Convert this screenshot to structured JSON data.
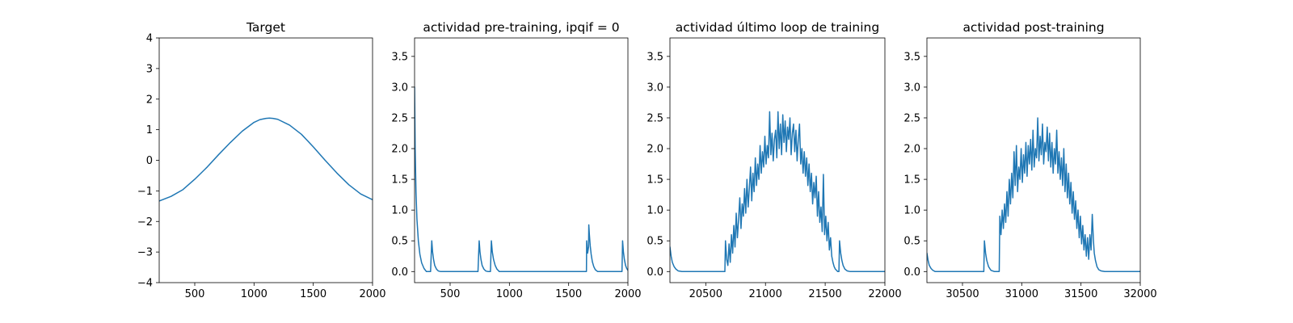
{
  "chart_data": [
    {
      "type": "line",
      "title": "Target",
      "xlim": [
        200,
        2000
      ],
      "ylim": [
        -4,
        4
      ],
      "xticks": [
        500,
        1000,
        1500,
        2000
      ],
      "yticks": [
        -4,
        -3,
        -2,
        -1,
        0,
        1,
        2,
        3,
        4
      ],
      "xtick_labels": [
        "500",
        "1000",
        "1500",
        "2000"
      ],
      "ytick_labels": [
        "−4",
        "−3",
        "−2",
        "−1",
        "0",
        "1",
        "2",
        "3",
        "4"
      ],
      "grid": false,
      "color": "#1f77b4",
      "x": [
        200,
        300,
        400,
        500,
        600,
        700,
        800,
        900,
        1000,
        1050,
        1100,
        1130,
        1160,
        1200,
        1300,
        1400,
        1500,
        1600,
        1700,
        1800,
        1900,
        2000
      ],
      "y": [
        -1.33,
        -1.18,
        -0.96,
        -0.62,
        -0.24,
        0.18,
        0.58,
        0.95,
        1.24,
        1.33,
        1.37,
        1.38,
        1.37,
        1.34,
        1.15,
        0.85,
        0.44,
        0.0,
        -0.42,
        -0.8,
        -1.1,
        -1.29
      ]
    },
    {
      "type": "line",
      "title": "actividad pre-training, ipqif = 0",
      "xlim": [
        200,
        2000
      ],
      "ylim": [
        -0.18,
        3.8
      ],
      "xticks": [
        500,
        1000,
        1500,
        2000
      ],
      "yticks": [
        0.0,
        0.5,
        1.0,
        1.5,
        2.0,
        2.5,
        3.0,
        3.5
      ],
      "xtick_labels": [
        "500",
        "1000",
        "1500",
        "2000"
      ],
      "ytick_labels": [
        "0.0",
        "0.5",
        "1.0",
        "1.5",
        "2.0",
        "2.5",
        "3.0",
        "3.5"
      ],
      "grid": false,
      "color": "#1f77b4",
      "x": [
        200,
        205,
        212,
        220,
        232,
        245,
        260,
        280,
        300,
        335,
        345,
        352,
        360,
        370,
        385,
        400,
        420,
        735,
        745,
        752,
        760,
        770,
        785,
        800,
        820,
        840,
        848,
        856,
        866,
        880,
        895,
        915,
        1650,
        1652,
        1660,
        1668,
        1670,
        1675,
        1682,
        1690,
        1700,
        1712,
        1725,
        1745,
        1770,
        1950,
        1955,
        1962,
        1970,
        1980,
        1990,
        2000
      ],
      "y": [
        3.0,
        2.0,
        1.3,
        0.85,
        0.5,
        0.28,
        0.14,
        0.05,
        0.0,
        0.0,
        0.5,
        0.32,
        0.2,
        0.1,
        0.04,
        0.01,
        0.0,
        0.0,
        0.5,
        0.32,
        0.2,
        0.1,
        0.04,
        0.01,
        0.0,
        0.0,
        0.5,
        0.32,
        0.2,
        0.1,
        0.04,
        0.0,
        0.0,
        0.5,
        0.3,
        0.4,
        0.76,
        0.6,
        0.42,
        0.28,
        0.16,
        0.08,
        0.03,
        0.0,
        0.0,
        0.0,
        0.5,
        0.32,
        0.2,
        0.1,
        0.05,
        0.02
      ]
    },
    {
      "type": "line",
      "title": "actividad último loop de training",
      "xlim": [
        20200,
        22000
      ],
      "ylim": [
        -0.18,
        3.8
      ],
      "xticks": [
        20500,
        21000,
        21500,
        22000
      ],
      "yticks": [
        0.0,
        0.5,
        1.0,
        1.5,
        2.0,
        2.5,
        3.0,
        3.5
      ],
      "xtick_labels": [
        "20500",
        "21000",
        "21500",
        "22000"
      ],
      "ytick_labels": [
        "0.0",
        "0.5",
        "1.0",
        "1.5",
        "2.0",
        "2.5",
        "3.0",
        "3.5"
      ],
      "grid": false,
      "color": "#1f77b4",
      "x": [
        20200,
        20210,
        20220,
        20235,
        20250,
        20270,
        20300,
        20660,
        20665,
        20675,
        20685,
        20695,
        20705,
        20715,
        20725,
        20735,
        20745,
        20755,
        20765,
        20775,
        20785,
        20795,
        20805,
        20815,
        20825,
        20835,
        20845,
        20855,
        20865,
        20875,
        20885,
        20895,
        20905,
        20915,
        20925,
        20935,
        20945,
        20955,
        20965,
        20975,
        20985,
        20995,
        21005,
        21015,
        21025,
        21035,
        21045,
        21055,
        21065,
        21075,
        21085,
        21095,
        21105,
        21115,
        21125,
        21135,
        21145,
        21155,
        21165,
        21175,
        21185,
        21195,
        21205,
        21215,
        21225,
        21235,
        21245,
        21255,
        21265,
        21275,
        21285,
        21295,
        21305,
        21315,
        21325,
        21335,
        21345,
        21355,
        21365,
        21375,
        21385,
        21395,
        21405,
        21415,
        21425,
        21435,
        21445,
        21455,
        21465,
        21475,
        21485,
        21495,
        21505,
        21515,
        21525,
        21535,
        21545,
        21555,
        21565,
        21575,
        21585,
        21595,
        21605,
        21615,
        21620,
        21630,
        21640,
        21650,
        21665,
        21685,
        21710,
        21750,
        22000
      ],
      "y": [
        0.4,
        0.25,
        0.15,
        0.08,
        0.04,
        0.01,
        0.0,
        0.0,
        0.5,
        0.2,
        0.1,
        0.45,
        0.15,
        0.6,
        0.3,
        0.75,
        0.4,
        0.95,
        0.55,
        0.85,
        1.2,
        0.7,
        1.1,
        0.9,
        1.35,
        0.95,
        1.5,
        1.05,
        1.35,
        1.7,
        1.15,
        1.6,
        1.3,
        1.85,
        1.4,
        1.75,
        1.5,
        2.05,
        1.6,
        1.95,
        1.7,
        2.2,
        1.75,
        2.05,
        1.85,
        2.6,
        1.9,
        2.25,
        1.8,
        2.15,
        2.3,
        1.85,
        2.6,
        2.0,
        2.4,
        1.9,
        2.55,
        2.1,
        2.45,
        1.95,
        2.35,
        2.15,
        2.5,
        1.9,
        2.25,
        2.4,
        1.95,
        2.3,
        1.8,
        2.15,
        2.4,
        1.75,
        2.0,
        1.6,
        1.95,
        1.55,
        1.85,
        1.4,
        1.75,
        1.3,
        1.6,
        1.1,
        1.45,
        1.2,
        1.55,
        0.9,
        1.3,
        0.8,
        1.05,
        0.65,
        1.58,
        0.6,
        0.9,
        0.5,
        0.8,
        0.35,
        0.55,
        0.25,
        0.15,
        0.08,
        0.04,
        0.02,
        0.0,
        0.0,
        0.5,
        0.3,
        0.18,
        0.1,
        0.04,
        0.01,
        0.0,
        0.0,
        0.0
      ]
    },
    {
      "type": "line",
      "title": "actividad post-training",
      "xlim": [
        30200,
        32000
      ],
      "ylim": [
        -0.18,
        3.8
      ],
      "xticks": [
        30500,
        31000,
        31500,
        32000
      ],
      "yticks": [
        0.0,
        0.5,
        1.0,
        1.5,
        2.0,
        2.5,
        3.0,
        3.5
      ],
      "xtick_labels": [
        "30500",
        "31000",
        "31500",
        "32000"
      ],
      "ytick_labels": [
        "0.0",
        "0.5",
        "1.0",
        "1.5",
        "2.0",
        "2.5",
        "3.0",
        "3.5"
      ],
      "grid": false,
      "color": "#1f77b4",
      "x": [
        30200,
        30210,
        30220,
        30235,
        30250,
        30270,
        30300,
        30680,
        30685,
        30695,
        30705,
        30720,
        30740,
        30770,
        30810,
        30815,
        30825,
        30835,
        30845,
        30855,
        30865,
        30875,
        30885,
        30895,
        30905,
        30915,
        30925,
        30935,
        30945,
        30955,
        30965,
        30975,
        30985,
        30995,
        31005,
        31015,
        31025,
        31035,
        31045,
        31055,
        31065,
        31075,
        31085,
        31095,
        31105,
        31115,
        31125,
        31135,
        31145,
        31155,
        31165,
        31175,
        31185,
        31195,
        31205,
        31215,
        31225,
        31235,
        31245,
        31255,
        31265,
        31275,
        31285,
        31295,
        31305,
        31315,
        31325,
        31335,
        31345,
        31355,
        31365,
        31375,
        31385,
        31395,
        31405,
        31415,
        31425,
        31435,
        31445,
        31455,
        31465,
        31475,
        31485,
        31495,
        31505,
        31515,
        31525,
        31535,
        31545,
        31555,
        31565,
        31575,
        31585,
        31595,
        31605,
        31612,
        31622,
        31635,
        31650,
        31670,
        31700,
        32000
      ],
      "y": [
        0.3,
        0.18,
        0.1,
        0.05,
        0.02,
        0.0,
        0.0,
        0.0,
        0.5,
        0.3,
        0.18,
        0.08,
        0.02,
        0.0,
        0.0,
        0.9,
        0.6,
        1.0,
        0.7,
        1.1,
        0.8,
        1.3,
        0.9,
        1.5,
        1.1,
        1.6,
        1.2,
        1.95,
        1.4,
        2.05,
        1.3,
        1.7,
        1.5,
        2.0,
        1.45,
        1.9,
        1.6,
        2.1,
        1.55,
        2.05,
        1.75,
        2.15,
        1.65,
        2.3,
        1.7,
        2.0,
        1.85,
        2.5,
        1.8,
        2.2,
        1.9,
        2.4,
        1.75,
        2.1,
        1.95,
        2.35,
        1.8,
        2.25,
        1.7,
        2.1,
        1.6,
        2.0,
        1.75,
        2.3,
        1.6,
        1.95,
        1.5,
        1.85,
        1.4,
        2.0,
        1.3,
        1.75,
        1.2,
        1.6,
        1.1,
        1.45,
        0.95,
        1.3,
        0.85,
        1.15,
        0.7,
        1.0,
        0.55,
        0.9,
        0.45,
        0.75,
        0.35,
        0.6,
        0.25,
        0.55,
        0.2,
        0.6,
        0.35,
        0.93,
        0.5,
        0.3,
        0.18,
        0.08,
        0.03,
        0.01,
        0.0,
        0.0
      ]
    }
  ]
}
